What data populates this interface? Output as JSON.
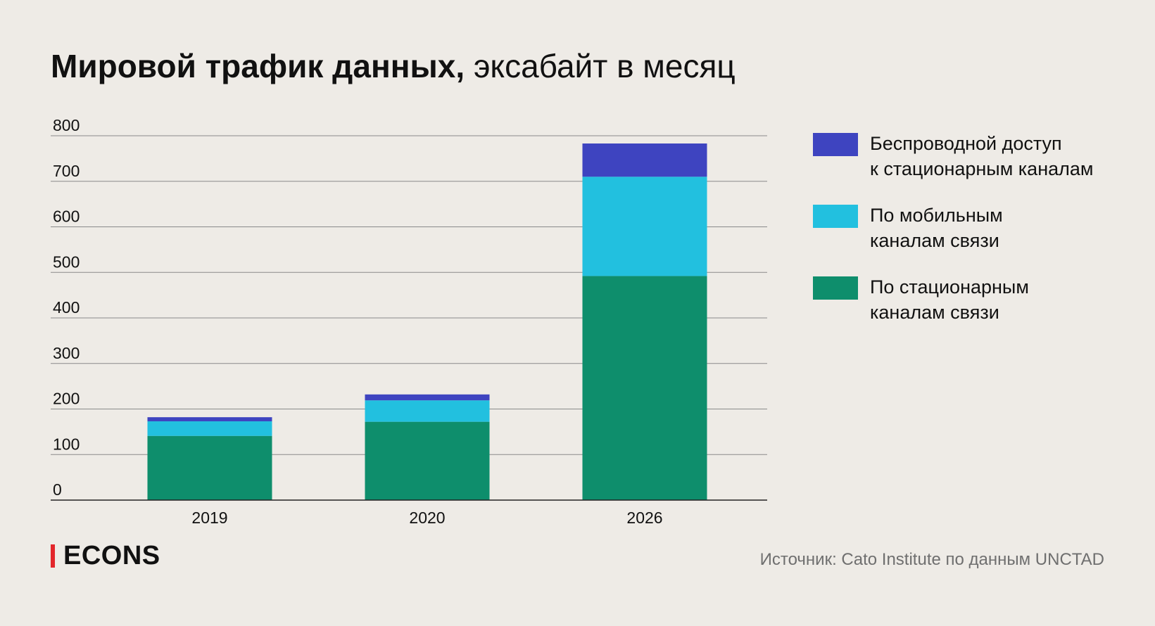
{
  "title": {
    "bold": "Мировой трафик данных,",
    "light": "эксабайт в месяц"
  },
  "chart_data": {
    "type": "bar",
    "stacked": true,
    "title": "Мировой трафик данных, эксабайт в месяц",
    "xlabel": "",
    "ylabel": "",
    "categories": [
      "2019",
      "2020",
      "2026"
    ],
    "ylim": [
      0,
      800
    ],
    "yticks": [
      "0",
      "100",
      "200",
      "300",
      "400",
      "500",
      "600",
      "700",
      "800"
    ],
    "grid": true,
    "legend_position": "right",
    "series": [
      {
        "name": "По стационарным каналам связи",
        "lines": [
          "По стационарным",
          "каналам связи"
        ],
        "color": "#0e8e6c",
        "values": [
          141,
          172,
          492
        ]
      },
      {
        "name": "По мобильным каналам связи",
        "lines": [
          "По мобильным",
          "каналам связи"
        ],
        "color": "#22c0df",
        "values": [
          32,
          47,
          218
        ]
      },
      {
        "name": "Беспроводной доступ к стационарным каналам",
        "lines": [
          "Беспроводной доступ",
          "к стационарным каналам"
        ],
        "color": "#3e44c0",
        "values": [
          9,
          13,
          73
        ]
      }
    ]
  },
  "logo": {
    "text": "ECONS",
    "accent": "#e3262b"
  },
  "source": "Источник: Cato Institute по данным UNCTAD"
}
